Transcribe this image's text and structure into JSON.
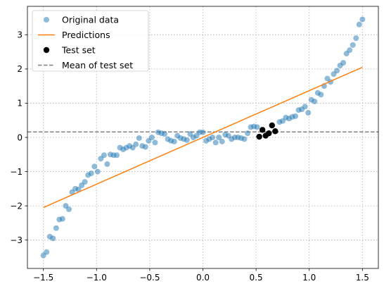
{
  "chart_data": {
    "type": "scatter",
    "xlim": [
      -1.65,
      1.65
    ],
    "ylim": [
      -3.83,
      3.83
    ],
    "xticks": [
      -1.5,
      -1.0,
      -0.5,
      0.0,
      0.5,
      1.0,
      1.5
    ],
    "xtick_labels": [
      "−1.5",
      "−1.0",
      "−0.5",
      "0.0",
      "0.5",
      "1.0",
      "1.5"
    ],
    "yticks": [
      -3,
      -2,
      -1,
      0,
      1,
      2,
      3
    ],
    "ytick_labels": [
      "−3",
      "−2",
      "−1",
      "0",
      "1",
      "2",
      "3"
    ],
    "grid": true,
    "legend_placement": "top-left",
    "series": [
      {
        "name": "Original data",
        "kind": "scatter",
        "color": "#1f77b4",
        "x": [
          -1.5,
          -1.47,
          -1.44,
          -1.41,
          -1.38,
          -1.35,
          -1.32,
          -1.29,
          -1.26,
          -1.23,
          -1.2,
          -1.17,
          -1.14,
          -1.11,
          -1.08,
          -1.05,
          -1.02,
          -0.99,
          -0.96,
          -0.93,
          -0.9,
          -0.87,
          -0.84,
          -0.81,
          -0.78,
          -0.75,
          -0.72,
          -0.69,
          -0.66,
          -0.63,
          -0.6,
          -0.57,
          -0.54,
          -0.51,
          -0.48,
          -0.45,
          -0.42,
          -0.39,
          -0.36,
          -0.33,
          -0.3,
          -0.27,
          -0.24,
          -0.21,
          -0.18,
          -0.15,
          -0.12,
          -0.09,
          -0.06,
          -0.03,
          0.0,
          0.03,
          0.06,
          0.09,
          0.12,
          0.15,
          0.18,
          0.21,
          0.24,
          0.27,
          0.3,
          0.33,
          0.36,
          0.39,
          0.42,
          0.45,
          0.48,
          0.51,
          0.72,
          0.75,
          0.78,
          0.81,
          0.84,
          0.87,
          0.9,
          0.93,
          0.96,
          0.99,
          1.02,
          1.05,
          1.08,
          1.11,
          1.14,
          1.17,
          1.2,
          1.23,
          1.26,
          1.29,
          1.32,
          1.35,
          1.38,
          1.41,
          1.44,
          1.47,
          1.5
        ],
        "y": [
          -3.45,
          -3.35,
          -2.9,
          -2.95,
          -2.65,
          -2.4,
          -2.38,
          -2.0,
          -2.1,
          -1.6,
          -1.5,
          -1.52,
          -1.4,
          -1.3,
          -1.1,
          -1.05,
          -0.85,
          -1.0,
          -0.62,
          -0.52,
          -0.78,
          -0.5,
          -0.52,
          -0.52,
          -0.3,
          -0.35,
          -0.3,
          -0.25,
          -0.3,
          -0.2,
          -0.02,
          -0.25,
          -0.28,
          -0.1,
          0.0,
          -0.15,
          0.15,
          0.12,
          0.1,
          -0.05,
          -0.1,
          -0.12,
          0.05,
          -0.02,
          -0.05,
          -0.08,
          0.1,
          0.0,
          0.05,
          0.15,
          0.15,
          -0.1,
          -0.05,
          0.0,
          -0.15,
          0.0,
          -0.12,
          0.08,
          0.05,
          -0.05,
          0.0,
          0.0,
          -0.02,
          -0.05,
          0.12,
          0.3,
          0.32,
          0.3,
          0.45,
          0.48,
          0.58,
          0.55,
          0.6,
          0.62,
          0.8,
          0.82,
          0.9,
          0.72,
          1.1,
          1.05,
          1.3,
          1.25,
          1.5,
          1.72,
          1.62,
          1.85,
          1.95,
          2.1,
          2.18,
          2.45,
          2.55,
          2.7,
          2.9,
          3.3,
          3.45
        ]
      },
      {
        "name": "Predictions",
        "kind": "line",
        "color": "#ff7f0e",
        "x": [
          -1.5,
          1.5
        ],
        "y": [
          -2.05,
          2.05
        ]
      },
      {
        "name": "Test set",
        "kind": "scatter",
        "color": "#000000",
        "x": [
          0.53,
          0.56,
          0.59,
          0.62,
          0.65,
          0.68
        ],
        "y": [
          0.02,
          0.22,
          0.05,
          0.12,
          0.35,
          0.18
        ]
      },
      {
        "name": "Mean of test set",
        "kind": "hline",
        "color": "#808080",
        "y": 0.16
      }
    ]
  }
}
